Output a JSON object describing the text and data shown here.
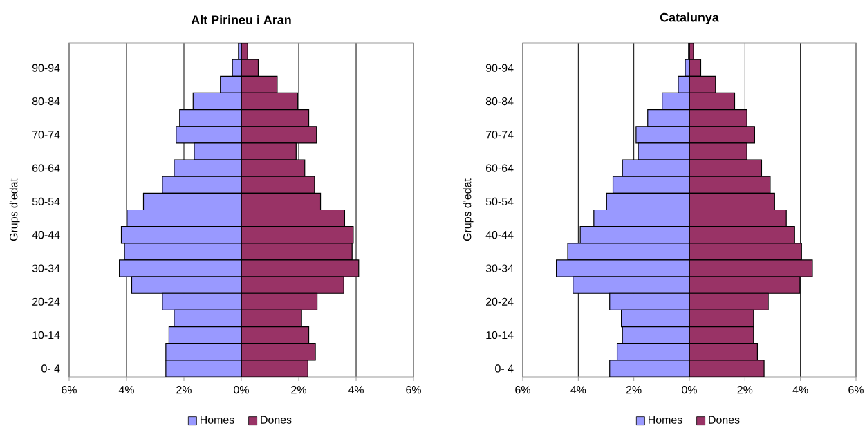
{
  "chart_data": [
    {
      "type": "bar",
      "title": "Alt Pirineu i Aran",
      "ylabel": "Grups d'edat",
      "orientation": "horizontal",
      "stacked": true,
      "categories": [
        null,
        "90-94",
        null,
        "80-84",
        null,
        "70-74",
        null,
        "60-64",
        null,
        "50-54",
        null,
        "40-44",
        null,
        "30-34",
        null,
        "20-24",
        null,
        "10-14",
        null,
        "0- 4"
      ],
      "series": [
        {
          "name": "Homes",
          "color": "#9999ff",
          "values": [
            -0.1,
            -0.31,
            -0.73,
            -1.68,
            -2.15,
            -2.27,
            -1.64,
            -2.34,
            -2.75,
            -3.41,
            -3.98,
            -4.18,
            -4.07,
            -4.25,
            -3.82,
            -2.75,
            -2.34,
            -2.52,
            -2.63,
            -2.63
          ]
        },
        {
          "name": "Dones",
          "color": "#993366",
          "values": [
            0.22,
            0.59,
            1.25,
            1.96,
            2.35,
            2.62,
            1.91,
            2.21,
            2.55,
            2.76,
            3.6,
            3.9,
            3.86,
            4.09,
            3.57,
            2.64,
            2.1,
            2.35,
            2.58,
            2.32
          ]
        }
      ],
      "xlim": [
        -6,
        6
      ],
      "xticks": [
        {
          "value": -6,
          "label": "6%"
        },
        {
          "value": -4,
          "label": "4%"
        },
        {
          "value": -2,
          "label": "2%"
        },
        {
          "value": 0,
          "label": "0%"
        },
        {
          "value": 2,
          "label": "2%"
        },
        {
          "value": 4,
          "label": "4%"
        },
        {
          "value": 6,
          "label": "6%"
        }
      ],
      "grid": "x",
      "legend": "bottom"
    },
    {
      "type": "bar",
      "title": "Catalunya",
      "ylabel": "Grups d'edat",
      "orientation": "horizontal",
      "stacked": true,
      "categories": [
        null,
        "90-94",
        null,
        "80-84",
        null,
        "70-74",
        null,
        "60-64",
        null,
        "50-54",
        null,
        "40-44",
        null,
        "30-34",
        null,
        "20-24",
        null,
        "10-14",
        null,
        "0- 4"
      ],
      "series": [
        {
          "name": "Homes",
          "color": "#9999ff",
          "values": [
            -0.03,
            -0.15,
            -0.4,
            -0.98,
            -1.5,
            -1.92,
            -1.84,
            -2.41,
            -2.75,
            -2.98,
            -3.44,
            -3.93,
            -4.38,
            -4.79,
            -4.19,
            -2.87,
            -2.45,
            -2.41,
            -2.6,
            -2.87
          ]
        },
        {
          "name": "Dones",
          "color": "#993366",
          "values": [
            0.15,
            0.41,
            0.94,
            1.63,
            2.07,
            2.35,
            2.07,
            2.6,
            2.91,
            3.07,
            3.49,
            3.79,
            4.04,
            4.43,
            3.98,
            2.84,
            2.31,
            2.31,
            2.45,
            2.69
          ]
        }
      ],
      "xlim": [
        -6,
        6
      ],
      "xticks": [
        {
          "value": -6,
          "label": "6%"
        },
        {
          "value": -4,
          "label": "4%"
        },
        {
          "value": -2,
          "label": "2%"
        },
        {
          "value": 0,
          "label": "0%"
        },
        {
          "value": 2,
          "label": "2%"
        },
        {
          "value": 4,
          "label": "4%"
        },
        {
          "value": 6,
          "label": "6%"
        }
      ],
      "grid": "x",
      "legend": "bottom"
    }
  ]
}
